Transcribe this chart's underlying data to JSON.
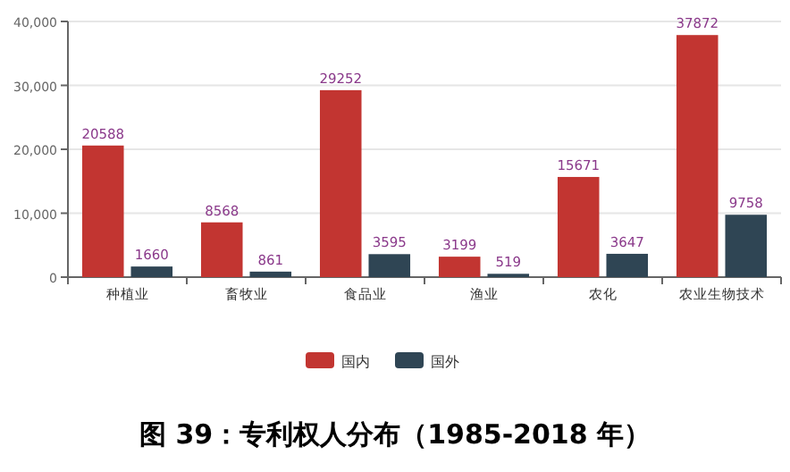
{
  "chart_data": {
    "type": "bar",
    "title": "图 39：专利权人分布（1985-2018 年）",
    "categories": [
      "种植业",
      "畜牧业",
      "食品业",
      "渔业",
      "农化",
      "农业生物技术"
    ],
    "series": [
      {
        "name": "国内",
        "color": "#c23531",
        "values": [
          20588,
          8568,
          29252,
          3199,
          15671,
          37872
        ]
      },
      {
        "name": "国外",
        "color": "#2f4554",
        "values": [
          1660,
          861,
          3595,
          519,
          3647,
          9758
        ]
      }
    ],
    "ylim": [
      0,
      40000
    ],
    "yticks": [
      0,
      {
        "value": 10000,
        "label": "10,000"
      },
      {
        "value": 20000,
        "label": "20,000"
      },
      {
        "value": 30000,
        "label": "30,000"
      },
      {
        "value": 40000,
        "label": "40,000"
      }
    ],
    "grid": "y",
    "legend": "bottom",
    "data_labels": true
  }
}
